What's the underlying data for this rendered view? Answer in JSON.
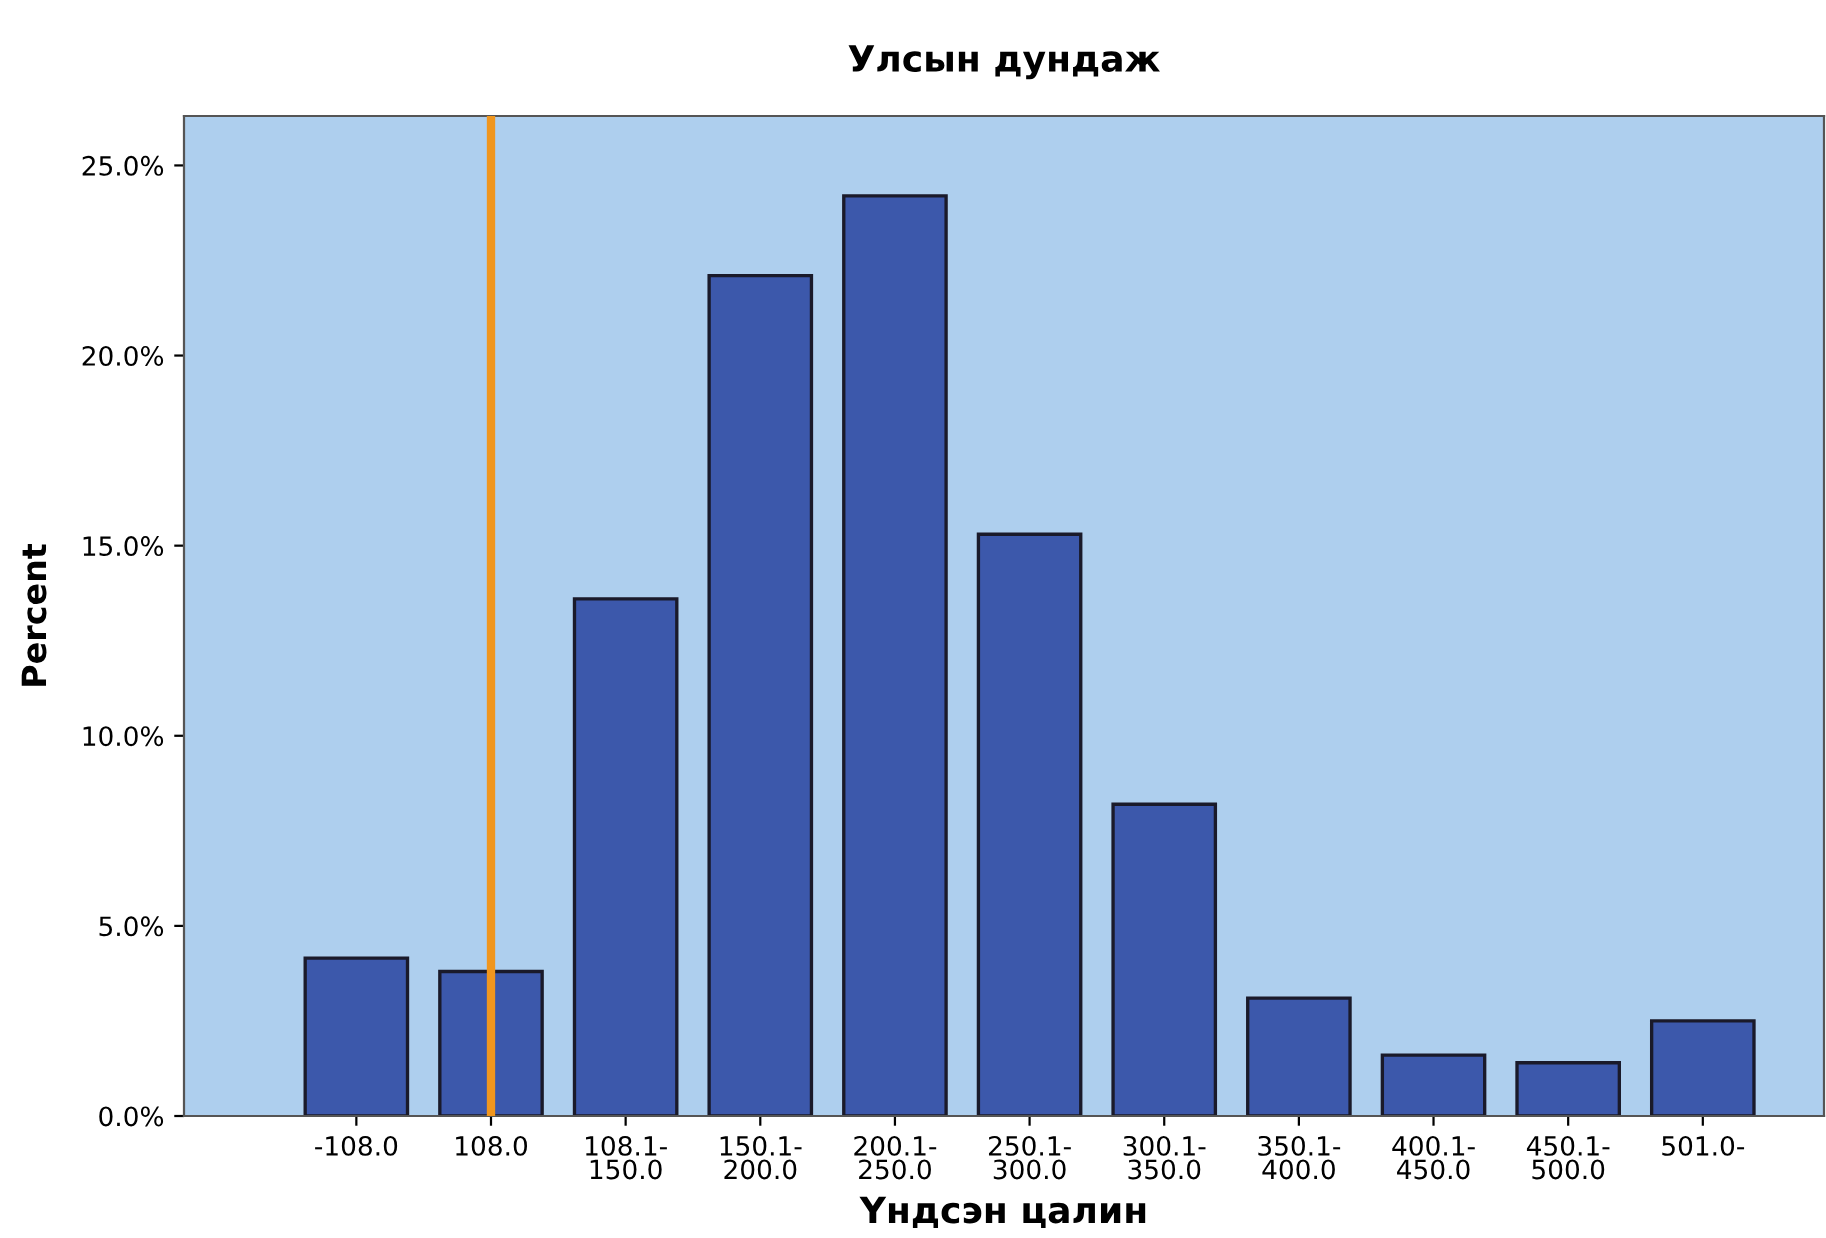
{
  "chart_data": {
    "type": "bar",
    "title": "Улсын дундаж",
    "xlabel": "Үндсэн цалин",
    "ylabel": "Percent",
    "categories": [
      "-108.0",
      "108.0",
      "108.1-\n150.0",
      "150.1-\n200.0",
      "200.1-\n250.0",
      "250.1-\n300.0",
      "300.1-\n350.0",
      "350.1-\n400.0",
      "400.1-\n450.0",
      "450.1-\n500.0",
      "501.0-"
    ],
    "values": [
      4.15,
      3.8,
      13.6,
      22.1,
      24.2,
      15.3,
      8.2,
      3.1,
      1.6,
      1.4,
      2.5
    ],
    "color": "#3c58ab",
    "ylim": [
      0,
      26.3
    ],
    "yticks": [
      {
        "value": 0,
        "label": "0.0%"
      },
      {
        "value": 5,
        "label": "5.0%"
      },
      {
        "value": 10,
        "label": "10.0%"
      },
      {
        "value": 15,
        "label": "15.0%"
      },
      {
        "value": 20,
        "label": "20.0%"
      },
      {
        "value": 25,
        "label": "25.0%"
      }
    ],
    "ref_lines": [
      {
        "axis": "x",
        "value": "108.0",
        "color": "#f0961e"
      }
    ],
    "grid": false
  }
}
